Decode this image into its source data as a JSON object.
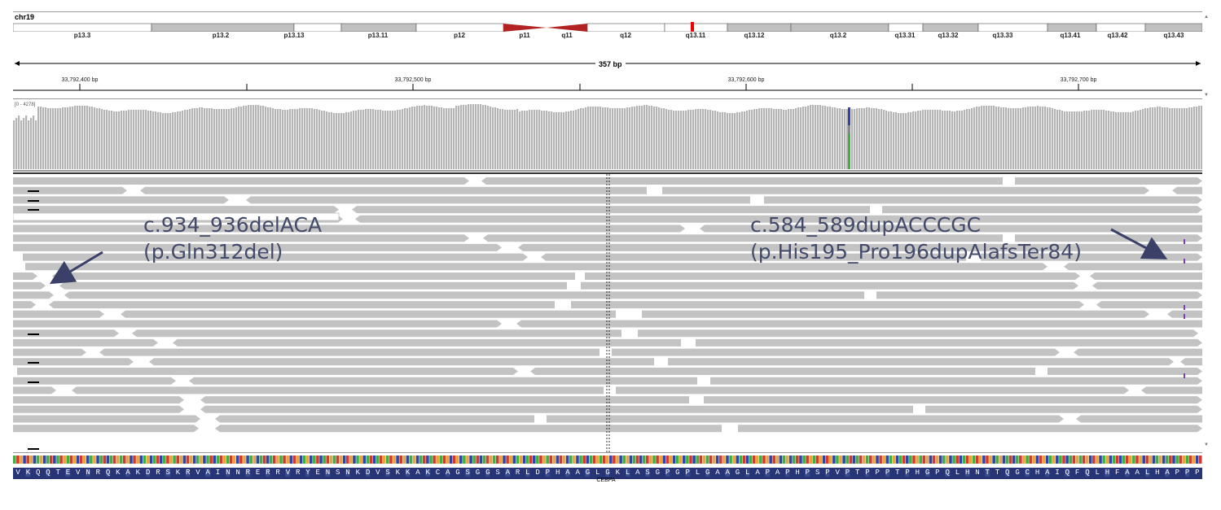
{
  "ideogram": {
    "chromosome": "chr19",
    "bands": [
      "p13.3",
      "p13.2",
      "p13.13",
      "p13.11",
      "p12",
      "p11",
      "q11",
      "q12",
      "q13.11",
      "q13.12",
      "q13.2",
      "q13.31",
      "q13.32",
      "q13.33",
      "q13.41",
      "q13.42",
      "q13.43"
    ]
  },
  "ruler": {
    "span": "357 bp",
    "ticks": [
      "33,792,400 bp",
      "33,792,500 bp",
      "33,792,600 bp",
      "33,792,700 bp"
    ]
  },
  "coverage": {
    "range": "[0 - 4278]"
  },
  "annotations": {
    "left": {
      "line1": "c.934_936delACA",
      "line2": "(p.Gln312del)"
    },
    "right": {
      "line1": "c.584_589dupACCCGC",
      "line2": "(p.His195_Pro196dupAlafsTer84)"
    }
  },
  "translation": {
    "amino_acids": "VKQQTEVNRQKAKDRSKRVAINNRERRVRYENSNKDVSKKAKCAGSGGSARLDPHAAGLGKLASGPGPLGAAGLAPAPHPSPVPTPPPTPHGPQLHNTTQGCHAIQFQLHFAALHAPPP",
    "gene": "CEBPA"
  },
  "colors": {
    "read_gray": "#c3c3c3",
    "coverage_gray": "#b4b4b4",
    "centromere_red": "#b22222",
    "aa_band": "#273576",
    "annotation_text": "#434a6b"
  }
}
